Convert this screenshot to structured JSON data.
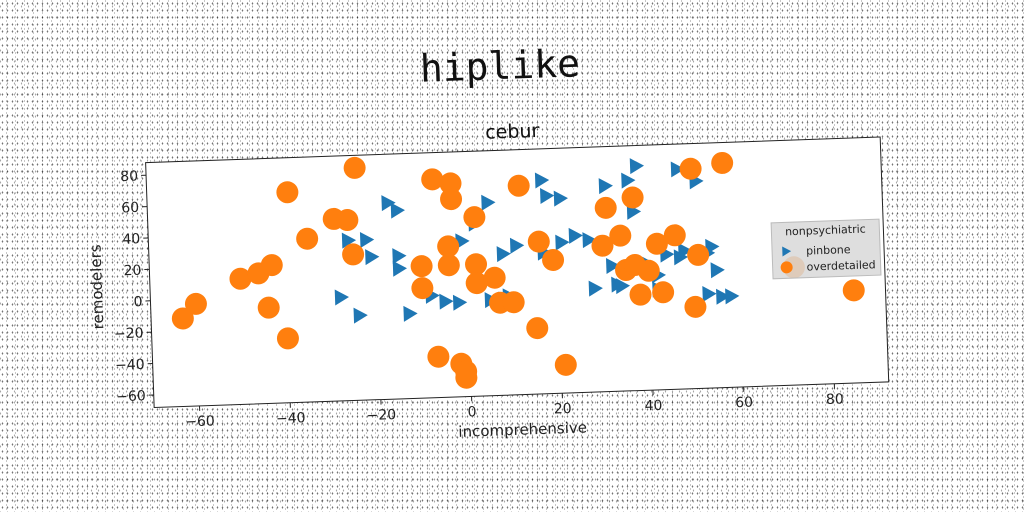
{
  "figure_title": "hiplike",
  "chart_data": {
    "type": "scatter",
    "title": "cebur",
    "xlabel": "incomprehensive",
    "ylabel": "remodelers",
    "xlim": [
      -70,
      92
    ],
    "ylim": [
      -68,
      88
    ],
    "xticks": [
      -60,
      -40,
      -20,
      0,
      20,
      40,
      60,
      80
    ],
    "yticks": [
      -60,
      -40,
      -20,
      0,
      20,
      40,
      60,
      80
    ],
    "grid": false,
    "legend": {
      "title": "nonpsychiatric",
      "position": "right"
    },
    "colors": {
      "pinbone": "#1f77b4",
      "overdetailed": "#ff7f0e"
    },
    "series": [
      {
        "name": "pinbone",
        "marker": "triangle-right",
        "color": "#1f77b4",
        "points": [
          [
            -28,
            -2
          ],
          [
            -24,
            -14
          ],
          [
            -26,
            34
          ],
          [
            -22,
            34
          ],
          [
            -21,
            23
          ],
          [
            -17,
            57
          ],
          [
            -15,
            52
          ],
          [
            -15,
            23
          ],
          [
            -15,
            15
          ],
          [
            -13,
            -14
          ],
          [
            -8,
            -3
          ],
          [
            -5,
            -7
          ],
          [
            -2,
            -8
          ],
          [
            -1,
            31
          ],
          [
            2,
            42
          ],
          [
            5,
            55
          ],
          [
            5,
            -7
          ],
          [
            8,
            -7
          ],
          [
            9,
            -5
          ],
          [
            8,
            22
          ],
          [
            11,
            27
          ],
          [
            16,
            28
          ],
          [
            17,
            22
          ],
          [
            17,
            68
          ],
          [
            18,
            58
          ],
          [
            21,
            56
          ],
          [
            21,
            28
          ],
          [
            24,
            32
          ],
          [
            27,
            29
          ],
          [
            28,
            -2
          ],
          [
            32,
            12
          ],
          [
            31,
            63
          ],
          [
            33,
            0
          ],
          [
            34,
            -1
          ],
          [
            36,
            66
          ],
          [
            37,
            46
          ],
          [
            38,
            75
          ],
          [
            40,
            12
          ],
          [
            42,
            5
          ],
          [
            42,
            -4
          ],
          [
            44,
            18
          ],
          [
            47,
            72
          ],
          [
            47,
            16
          ],
          [
            48,
            20
          ],
          [
            51,
            64
          ],
          [
            53,
            -8
          ],
          [
            53,
            18
          ],
          [
            54,
            22
          ],
          [
            55,
            7
          ],
          [
            56,
            -10
          ],
          [
            58,
            -10
          ]
        ]
      },
      {
        "name": "overdetailed",
        "marker": "circle",
        "color": "#ff7f0e",
        "points": [
          [
            -63,
            -12
          ],
          [
            -60,
            -3
          ],
          [
            -50,
            12
          ],
          [
            -46,
            15
          ],
          [
            -43,
            20
          ],
          [
            -44,
            -7
          ],
          [
            -40,
            -27
          ],
          [
            -39,
            66
          ],
          [
            -35,
            36
          ],
          [
            -29,
            48
          ],
          [
            -26,
            47
          ],
          [
            -25,
            25
          ],
          [
            -24,
            80
          ],
          [
            -10,
            16
          ],
          [
            -10,
            2
          ],
          [
            -7,
            71
          ],
          [
            -7,
            -42
          ],
          [
            -4,
            28
          ],
          [
            -4,
            16
          ],
          [
            -3,
            68
          ],
          [
            -3,
            58
          ],
          [
            -2,
            -47
          ],
          [
            -1,
            -56
          ],
          [
            -1,
            -52
          ],
          [
            2,
            46
          ],
          [
            2,
            16
          ],
          [
            2,
            4
          ],
          [
            6,
            7
          ],
          [
            7,
            -9
          ],
          [
            10,
            -9
          ],
          [
            12,
            65
          ],
          [
            15,
            -26
          ],
          [
            16,
            29
          ],
          [
            19,
            17
          ],
          [
            21,
            -50
          ],
          [
            30,
            25
          ],
          [
            31,
            49
          ],
          [
            34,
            31
          ],
          [
            35,
            9
          ],
          [
            37,
            55
          ],
          [
            37,
            12
          ],
          [
            38,
            -7
          ],
          [
            40,
            8
          ],
          [
            42,
            25
          ],
          [
            43,
            -6
          ],
          [
            46,
            30
          ],
          [
            50,
            -16
          ],
          [
            50,
            72
          ],
          [
            51,
            17
          ],
          [
            57,
            75
          ],
          [
            72,
            7
          ],
          [
            85,
            -9
          ]
        ]
      }
    ]
  }
}
